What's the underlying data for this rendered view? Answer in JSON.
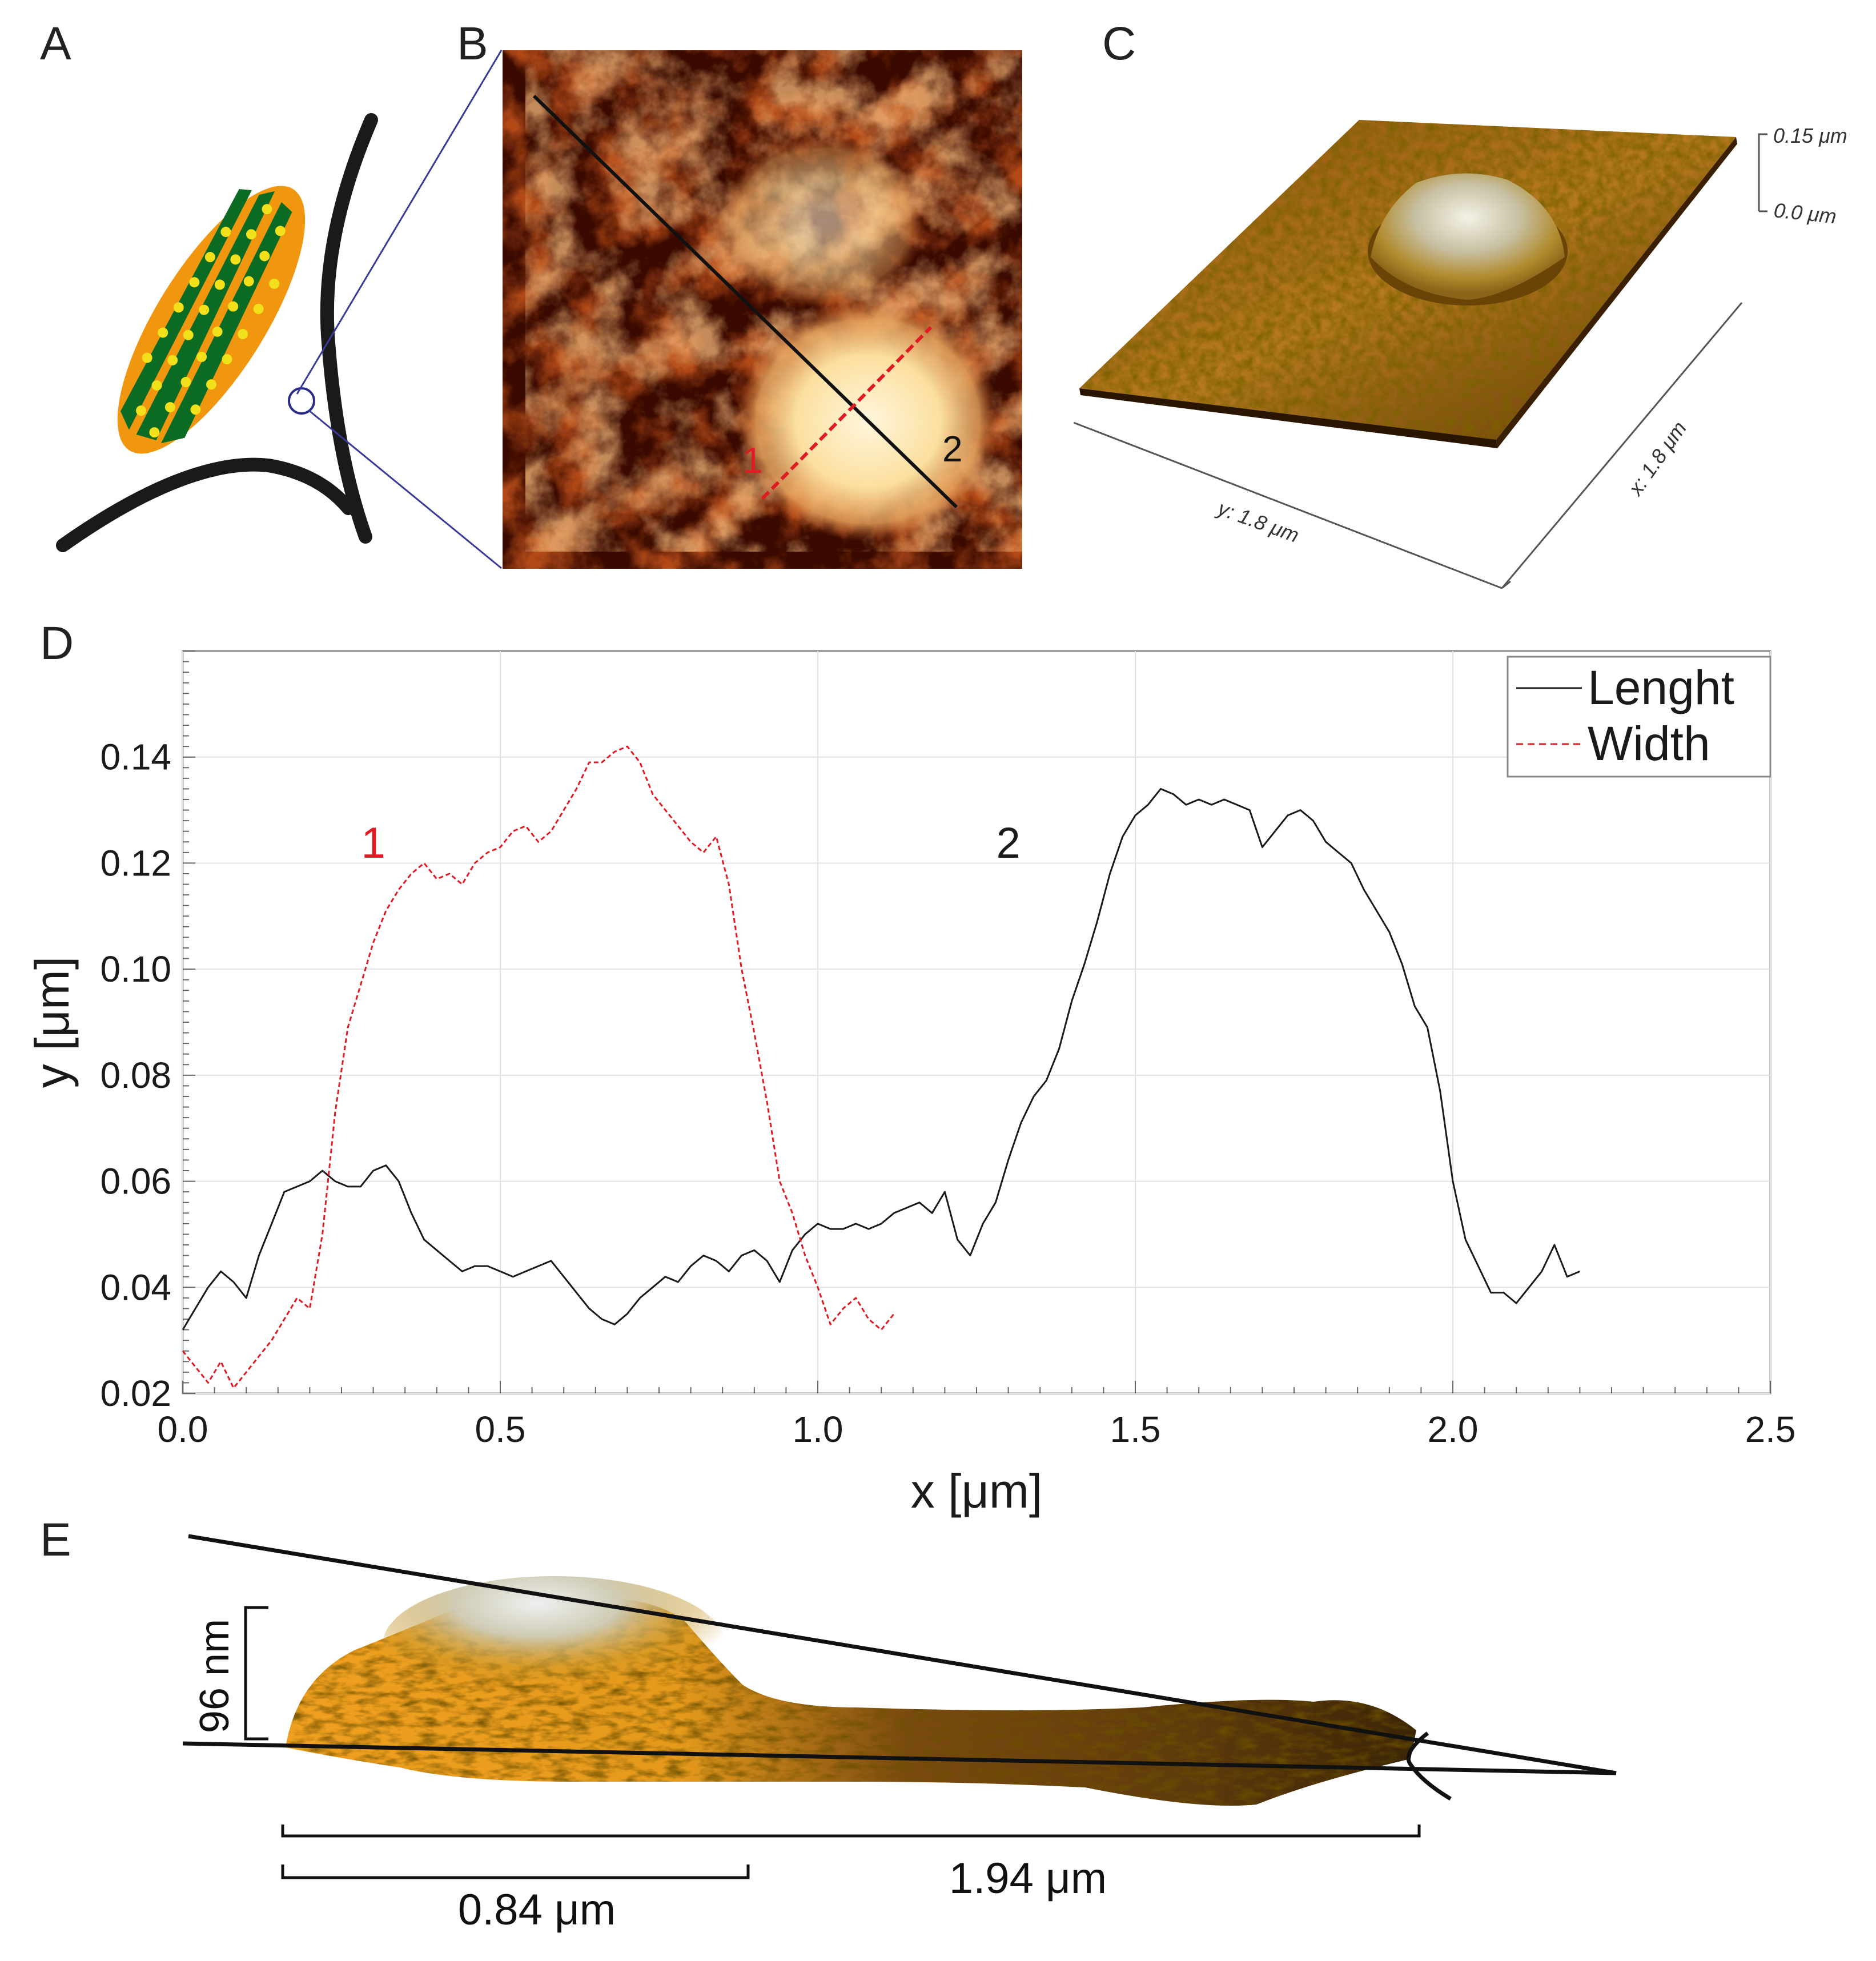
{
  "panels": {
    "a": {
      "label": "A"
    },
    "b": {
      "label": "B",
      "marker_1": "1",
      "marker_2": "2"
    },
    "c": {
      "label": "C",
      "z_top": "0.15 μm",
      "z_bottom": "0.0 μm",
      "y_axis": "y: 1.8 μm",
      "x_axis": "x: 1.8 μm"
    },
    "d": {
      "label": "D"
    },
    "e": {
      "label": "E",
      "height": "96 nm",
      "short_length": "0.84 μm",
      "long_length": "1.94 μm"
    }
  },
  "colors": {
    "length_line": "#1a1a1a",
    "width_line": "#e01b24",
    "leaf_orange": "#f0960f",
    "leaf_green": "#0b6b22",
    "dots": "#f2e01b"
  },
  "chart_data": {
    "type": "line",
    "xlabel": "x [μm]",
    "ylabel": "y [μm]",
    "xlim": [
      0,
      2.5
    ],
    "ylim": [
      0.02,
      0.16
    ],
    "xticks": [
      "0.0",
      "0.5",
      "1.0",
      "1.5",
      "2.0",
      "2.5"
    ],
    "yticks": [
      "0.02",
      "0.04",
      "0.06",
      "0.08",
      "0.10",
      "0.12",
      "0.14"
    ],
    "annotations": [
      {
        "text": "1",
        "x": 0.3,
        "y": 0.121,
        "color": "#e01b24"
      },
      {
        "text": "2",
        "x": 1.3,
        "y": 0.121,
        "color": "#1a1a1a"
      }
    ],
    "series": [
      {
        "name": "Lenght",
        "style": "solid",
        "x": [
          0.0,
          0.02,
          0.04,
          0.06,
          0.08,
          0.1,
          0.12,
          0.14,
          0.16,
          0.18,
          0.2,
          0.22,
          0.24,
          0.26,
          0.28,
          0.3,
          0.32,
          0.34,
          0.36,
          0.38,
          0.4,
          0.42,
          0.44,
          0.46,
          0.48,
          0.5,
          0.52,
          0.54,
          0.56,
          0.58,
          0.6,
          0.62,
          0.64,
          0.66,
          0.68,
          0.7,
          0.72,
          0.74,
          0.76,
          0.78,
          0.8,
          0.82,
          0.84,
          0.86,
          0.88,
          0.9,
          0.92,
          0.94,
          0.96,
          0.98,
          1.0,
          1.02,
          1.04,
          1.06,
          1.08,
          1.1,
          1.12,
          1.14,
          1.16,
          1.18,
          1.2,
          1.22,
          1.24,
          1.26,
          1.28,
          1.3,
          1.32,
          1.34,
          1.36,
          1.38,
          1.4,
          1.42,
          1.44,
          1.46,
          1.48,
          1.5,
          1.52,
          1.54,
          1.56,
          1.58,
          1.6,
          1.62,
          1.64,
          1.66,
          1.68,
          1.7,
          1.72,
          1.74,
          1.76,
          1.78,
          1.8,
          1.82,
          1.84,
          1.86,
          1.88,
          1.9,
          1.92,
          1.94,
          1.96,
          1.98,
          2.0,
          2.02,
          2.04,
          2.06,
          2.08,
          2.1,
          2.12,
          2.14,
          2.16,
          2.18,
          2.2
        ],
        "y": [
          0.032,
          0.036,
          0.04,
          0.043,
          0.041,
          0.038,
          0.046,
          0.052,
          0.058,
          0.059,
          0.06,
          0.062,
          0.06,
          0.059,
          0.059,
          0.062,
          0.063,
          0.06,
          0.054,
          0.049,
          0.047,
          0.045,
          0.043,
          0.044,
          0.044,
          0.043,
          0.042,
          0.043,
          0.044,
          0.045,
          0.042,
          0.039,
          0.036,
          0.034,
          0.033,
          0.035,
          0.038,
          0.04,
          0.042,
          0.041,
          0.044,
          0.046,
          0.045,
          0.043,
          0.046,
          0.047,
          0.045,
          0.041,
          0.047,
          0.05,
          0.052,
          0.051,
          0.051,
          0.052,
          0.051,
          0.052,
          0.054,
          0.055,
          0.056,
          0.054,
          0.058,
          0.049,
          0.046,
          0.052,
          0.056,
          0.064,
          0.071,
          0.076,
          0.079,
          0.085,
          0.094,
          0.101,
          0.109,
          0.118,
          0.125,
          0.129,
          0.131,
          0.134,
          0.133,
          0.131,
          0.132,
          0.131,
          0.132,
          0.131,
          0.13,
          0.123,
          0.126,
          0.129,
          0.13,
          0.128,
          0.124,
          0.122,
          0.12,
          0.115,
          0.111,
          0.107,
          0.101,
          0.093,
          0.089,
          0.077,
          0.06,
          0.049,
          0.044,
          0.039,
          0.039,
          0.037,
          0.04,
          0.043,
          0.048,
          0.042,
          0.043
        ]
      },
      {
        "name": "Width",
        "style": "dashed",
        "x": [
          0.0,
          0.02,
          0.04,
          0.06,
          0.08,
          0.1,
          0.12,
          0.14,
          0.16,
          0.18,
          0.2,
          0.22,
          0.24,
          0.26,
          0.28,
          0.3,
          0.32,
          0.34,
          0.36,
          0.38,
          0.4,
          0.42,
          0.44,
          0.46,
          0.48,
          0.5,
          0.52,
          0.54,
          0.56,
          0.58,
          0.6,
          0.62,
          0.64,
          0.66,
          0.68,
          0.7,
          0.72,
          0.74,
          0.76,
          0.78,
          0.8,
          0.82,
          0.84,
          0.86,
          0.88,
          0.9,
          0.92,
          0.94,
          0.96,
          0.98,
          1.0,
          1.02,
          1.04,
          1.06,
          1.08,
          1.1,
          1.12
        ],
        "y": [
          0.028,
          0.025,
          0.022,
          0.026,
          0.021,
          0.024,
          0.027,
          0.03,
          0.034,
          0.038,
          0.036,
          0.05,
          0.073,
          0.089,
          0.097,
          0.105,
          0.111,
          0.115,
          0.118,
          0.12,
          0.117,
          0.118,
          0.116,
          0.12,
          0.122,
          0.123,
          0.126,
          0.127,
          0.124,
          0.126,
          0.13,
          0.134,
          0.139,
          0.139,
          0.141,
          0.142,
          0.139,
          0.133,
          0.13,
          0.127,
          0.124,
          0.122,
          0.125,
          0.116,
          0.1,
          0.088,
          0.075,
          0.06,
          0.054,
          0.046,
          0.04,
          0.033,
          0.036,
          0.038,
          0.034,
          0.032,
          0.035
        ]
      }
    ]
  }
}
